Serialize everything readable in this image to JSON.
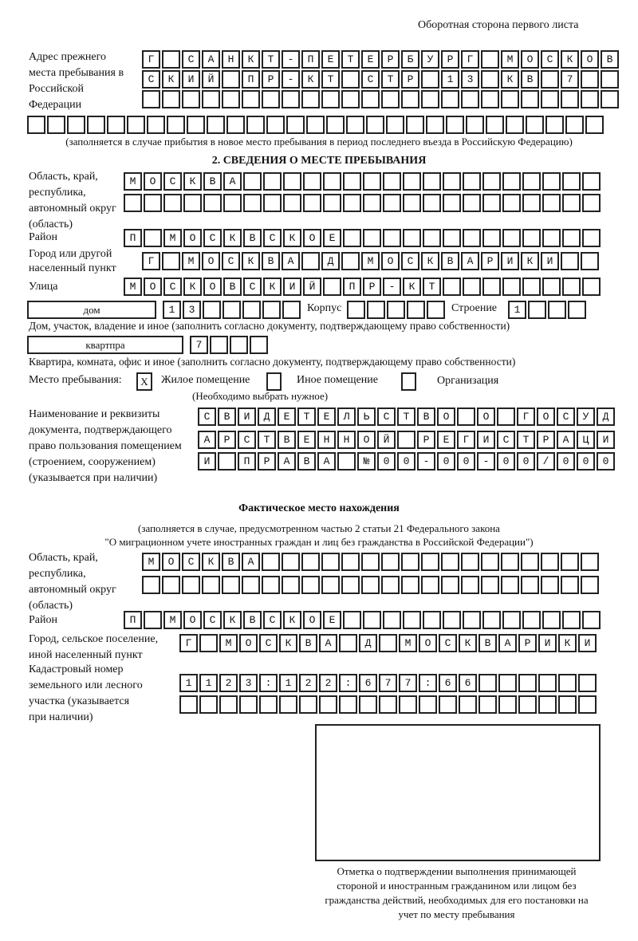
{
  "header": "Оборотная сторона первого листа",
  "prev_address": {
    "label": "Адрес прежнего места пребывания в Российской Федерации",
    "rows": [
      "Г САНКТ-ПЕТЕРБУРГ МОСКОВ",
      "СКИЙ ПР-КТ СТР 13 КВ 7",
      "",
      ""
    ],
    "note": "(заполняется в случае прибытия в новое место пребывания в период последнего въезда в Российскую Федерацию)"
  },
  "section2": {
    "title": "2. СВЕДЕНИЯ О МЕСТЕ ПРЕБЫВАНИЯ",
    "region_label": "Область, край, республика, автономный округ (область)",
    "region_rows": [
      "МОСКВА",
      ""
    ],
    "district_label": "Район",
    "district": "П МОСКВСКОЕ",
    "city_label": "Город или другой населенный пункт",
    "city": "Г МОСКВА Д МОСКВАРИКИ",
    "street_label": "Улица",
    "street": "МОСКОВСКИЙ ПР-КТ",
    "house_type": "дом",
    "house_number": "13",
    "korpus_label": "Корпус",
    "korpus": "",
    "building_label": "Строение",
    "building": "1",
    "house_note": "Дом, участок, владение и иное (заполнить согласно документу, подтверждающему право собственности)",
    "apt_type": "квартпра",
    "apt_number": "7",
    "apt_note": "Квартира, комната, офис и иное (заполнить согласно документу, подтверждающему право собственности)",
    "stay_label": "Место пребывания:",
    "stay_options": [
      {
        "mark": "X",
        "label": "Жилое помещение"
      },
      {
        "mark": "",
        "label": "Иное помещение"
      },
      {
        "mark": "",
        "label": "Организация"
      }
    ],
    "stay_note": "(Необходимо выбрать нужное)",
    "doc_label": "Наименование и реквизиты документа, подтверждающего право пользования помещением (строением, сооружением) (указывается при наличии)",
    "doc_rows": [
      "СВИДЕТЕЛЬСТВО О ГОСУД",
      "АРСТВЕННОЙ РЕГИСТРАЦИ",
      "И ПРАВА №00-00-00/000"
    ]
  },
  "actual": {
    "title": "Фактическое место нахождения",
    "note1": "(заполняется в случае, предусмотренном частью 2 статьи 21 Федерального закона",
    "note2": "\"О миграционном учете иностранных граждан и лиц без гражданства в Российской Федерации\")",
    "region_label": "Область, край, республика, автономный округ (область)",
    "region_rows": [
      "МОСКВА",
      ""
    ],
    "district_label": "Район",
    "district": "П МОСКВСКОЕ",
    "city_label": "Город, сельское поселение, иной населенный пункт",
    "city": "Г МОСКВА Д МОСКВАРИКИ",
    "cadastre_label": "Кадастровый номер земельного или лесного участка (указывается при наличии)",
    "cadastre_rows": [
      "1123:122:677:66",
      ""
    ]
  },
  "stamp_caption": "Отметка о подтверждении выполнения принимающей стороной и иностранным гражданином или лицом без гражданства действий, необходимых для его постановки на учет по месту пребывания"
}
